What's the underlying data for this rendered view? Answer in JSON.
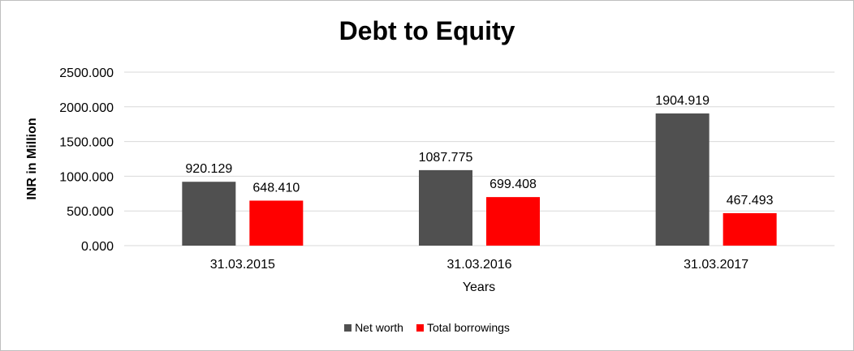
{
  "chart_data": {
    "type": "bar",
    "title": "Debt to Equity",
    "xlabel": "Years",
    "ylabel": "INR in Million",
    "categories": [
      "31.03.2015",
      "31.03.2016",
      "31.03.2017"
    ],
    "ylim": [
      0,
      2500
    ],
    "yticks": [
      "0.000",
      "500.000",
      "1000.000",
      "1500.000",
      "2000.000",
      "2500.000"
    ],
    "grid": true,
    "legend_position": "bottom",
    "series": [
      {
        "name": "Net worth",
        "color": "#505050",
        "values": [
          920.129,
          1087.775,
          1904.919
        ],
        "labels": [
          "920.129",
          "1087.775",
          "1904.919"
        ]
      },
      {
        "name": "Total borrowings",
        "color": "#ff0000",
        "values": [
          648.41,
          699.408,
          467.493
        ],
        "labels": [
          "648.410",
          "699.408",
          "467.493"
        ]
      }
    ]
  }
}
